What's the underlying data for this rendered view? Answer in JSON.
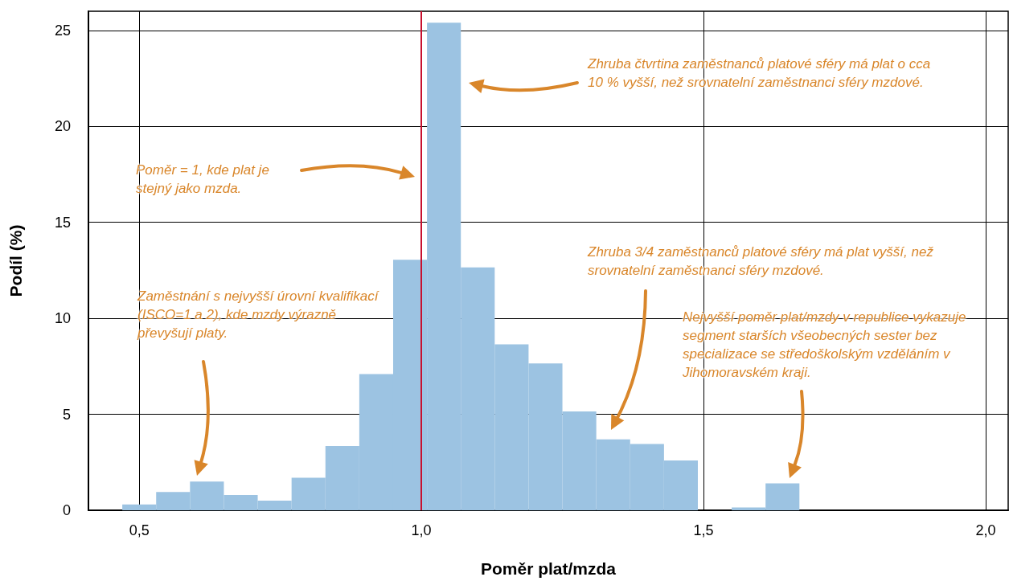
{
  "chart_data": {
    "type": "histogram",
    "xlabel": "Poměr plat/mzda",
    "ylabel": "Podíl (%)",
    "bins": [
      0.47,
      0.53,
      0.59,
      0.65,
      0.71,
      0.77,
      0.83,
      0.89,
      0.95,
      1.01,
      1.07,
      1.13,
      1.19,
      1.25,
      1.31,
      1.37,
      1.43,
      1.49,
      1.55,
      1.61,
      1.67
    ],
    "values": [
      0.3,
      0.95,
      1.5,
      0.8,
      0.5,
      1.7,
      3.35,
      7.1,
      13.05,
      25.4,
      12.65,
      8.65,
      7.65,
      5.15,
      3.7,
      3.45,
      2.6,
      0,
      0.15,
      1.4
    ],
    "color": "#9cc3e2",
    "xlim": [
      0.41,
      2.04
    ],
    "xticks": [
      {
        "value": 0.5,
        "label": "0,5"
      },
      {
        "value": 1.0,
        "label": "1,0"
      },
      {
        "value": 1.5,
        "label": "1,5"
      },
      {
        "value": 2.0,
        "label": "2,0"
      }
    ],
    "ylim": [
      0,
      26
    ],
    "yticks": [
      0,
      5,
      10,
      15,
      20,
      25
    ],
    "grid": true,
    "ref_lines": [
      {
        "axis": "x",
        "value": 1.0,
        "color": "#c8102e"
      }
    ],
    "annotations": [
      "Poměr = 1, kde plat je stejný jako mzda.",
      "Zhruba čtvrtina zaměstnanců platové sféry má plat o cca 10 % vyšší, než srovnatelní zaměstnanci sféry mzdové.",
      "Zaměstnání s nejvyšší úrovní kvalifikací (ISCO=1 a 2), kde mzdy výrazně převyšují platy.",
      "Zhruba 3/4 zaměstnanců platové sféry má plat vyšší, než srovnatelní zaměstnanci sféry mzdové.",
      "Nejvyšší poměr plat/mzdy v republice vykazuje segment starších všeobecných sester bez specializace se středoškolským vzděláním v Jihomoravském kraji."
    ]
  }
}
